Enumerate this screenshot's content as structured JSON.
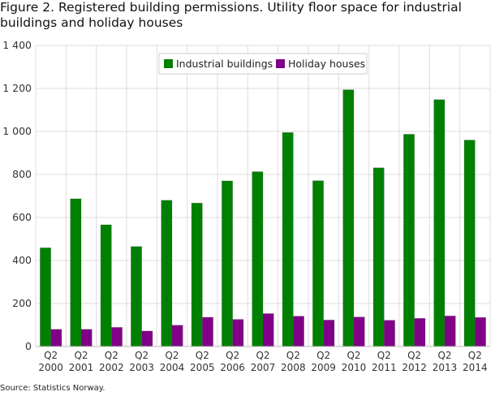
{
  "chart_data": {
    "type": "bar",
    "title": "Figure 2. Registered building permissions. Utility floor space for industrial buildings and holiday houses",
    "source": "Source: Statistics Norway.",
    "categories": [
      [
        "Q2",
        "2000"
      ],
      [
        "Q2",
        "2001"
      ],
      [
        "Q2",
        "2002"
      ],
      [
        "Q2",
        "2003"
      ],
      [
        "Q2",
        "2004"
      ],
      [
        "Q2",
        "2005"
      ],
      [
        "Q2",
        "2006"
      ],
      [
        "Q2",
        "2007"
      ],
      [
        "Q2",
        "2008"
      ],
      [
        "Q2",
        "2009"
      ],
      [
        "Q2",
        "2010"
      ],
      [
        "Q2",
        "2011"
      ],
      [
        "Q2",
        "2012"
      ],
      [
        "Q2",
        "2013"
      ],
      [
        "Q2",
        "2014"
      ]
    ],
    "series": [
      {
        "name": "Industrial buildings",
        "color": "#008000",
        "values": [
          459,
          687,
          566,
          465,
          680,
          667,
          770,
          813,
          995,
          771,
          1194,
          831,
          987,
          1148,
          960
        ]
      },
      {
        "name": "Holiday houses",
        "color": "#800088",
        "values": [
          80,
          80,
          89,
          72,
          99,
          136,
          126,
          153,
          141,
          123,
          137,
          122,
          131,
          142,
          135
        ]
      }
    ],
    "ylim": [
      0,
      1400
    ],
    "yticks": [
      "0",
      "200",
      "400",
      "600",
      "800",
      "1 000",
      "1 200",
      "1 400"
    ],
    "ytick_values": [
      0,
      200,
      400,
      600,
      800,
      1000,
      1200,
      1400
    ],
    "grid": true,
    "legend": "top-center",
    "xlabel": "",
    "ylabel": ""
  }
}
